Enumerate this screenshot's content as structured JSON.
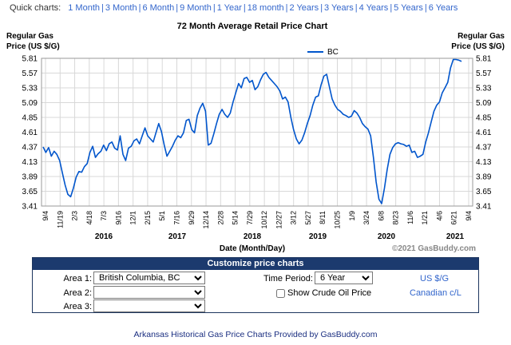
{
  "quick_charts": {
    "label": "Quick charts:",
    "links": [
      "1 Month",
      "3 Month",
      "6 Month",
      "9 Month",
      "1 Year",
      "18 month",
      "2 Years",
      "3 Years",
      "4 Years",
      "5 Years",
      "6 Years"
    ]
  },
  "chart_data": {
    "type": "line",
    "title": "72 Month Average Retail Price Chart",
    "ylabel_left": "Regular Gas\nPrice (US $/G)",
    "ylabel_right": "Regular Gas\nPrice (US $/G)",
    "xlabel": "Date (Month/Day)",
    "credit": "©2021 GasBuddy.com",
    "legend": "BC",
    "legend_position": "top-right",
    "grid": true,
    "ylim": [
      3.41,
      5.81
    ],
    "y_ticks": [
      "5.81",
      "5.57",
      "5.33",
      "5.09",
      "4.85",
      "4.61",
      "4.37",
      "4.13",
      "3.89",
      "3.65",
      "3.41"
    ],
    "x_ticks": [
      "9/4",
      "11/19",
      "2/3",
      "4/18",
      "7/3",
      "9/16",
      "12/1",
      "2/15",
      "5/1",
      "7/16",
      "9/29",
      "12/14",
      "2/28",
      "5/14",
      "7/29",
      "10/12",
      "12/27",
      "3/12",
      "5/27",
      "8/11",
      "10/25",
      "1/9",
      "3/24",
      "6/8",
      "8/23",
      "11/6",
      "1/21",
      "4/6",
      "6/21",
      "9/4"
    ],
    "years": [
      "2016",
      "2017",
      "2018",
      "2019",
      "2020",
      "2021"
    ],
    "series": [
      {
        "name": "BC",
        "color": "#0055cc",
        "values": [
          4.37,
          4.28,
          4.36,
          4.22,
          4.3,
          4.25,
          4.15,
          3.95,
          3.75,
          3.6,
          3.56,
          3.7,
          3.88,
          3.97,
          3.96,
          4.05,
          4.1,
          4.28,
          4.38,
          4.2,
          4.26,
          4.3,
          4.4,
          4.31,
          4.42,
          4.45,
          4.35,
          4.32,
          4.55,
          4.25,
          4.15,
          4.35,
          4.38,
          4.47,
          4.5,
          4.42,
          4.55,
          4.68,
          4.55,
          4.5,
          4.45,
          4.6,
          4.75,
          4.62,
          4.4,
          4.22,
          4.3,
          4.38,
          4.48,
          4.55,
          4.52,
          4.6,
          4.8,
          4.82,
          4.65,
          4.6,
          4.88,
          5.0,
          5.08,
          4.95,
          4.4,
          4.43,
          4.58,
          4.75,
          4.9,
          4.98,
          4.9,
          4.85,
          4.92,
          5.1,
          5.25,
          5.4,
          5.33,
          5.48,
          5.5,
          5.42,
          5.45,
          5.3,
          5.35,
          5.46,
          5.55,
          5.58,
          5.5,
          5.45,
          5.4,
          5.35,
          5.28,
          5.15,
          5.18,
          5.1,
          4.85,
          4.65,
          4.5,
          4.42,
          4.48,
          4.6,
          4.75,
          4.88,
          5.05,
          5.18,
          5.2,
          5.38,
          5.52,
          5.55,
          5.35,
          5.15,
          5.05,
          4.98,
          4.95,
          4.9,
          4.88,
          4.85,
          4.87,
          4.96,
          4.92,
          4.85,
          4.75,
          4.7,
          4.66,
          4.55,
          4.2,
          3.8,
          3.52,
          3.45,
          3.7,
          4.0,
          4.25,
          4.36,
          4.42,
          4.44,
          4.42,
          4.41,
          4.38,
          4.4,
          4.28,
          4.3,
          4.2,
          4.22,
          4.25,
          4.45,
          4.6,
          4.78,
          4.95,
          5.05,
          5.1,
          5.25,
          5.33,
          5.42,
          5.65,
          5.79,
          5.79,
          5.78,
          5.76
        ]
      }
    ]
  },
  "customize": {
    "title": "Customize price charts",
    "area1_label": "Area 1:",
    "area1_value": "British Columbia, BC",
    "area2_label": "Area 2:",
    "area2_value": "",
    "area3_label": "Area 3:",
    "area3_value": "",
    "time_period_label": "Time Period:",
    "time_period_value": "6 Year",
    "crude_label": "Show Crude Oil Price",
    "units_link": "US $/G",
    "currency_link": "Canadian c/L"
  },
  "footer": {
    "prefix": "Arkansas Historical Gas Price Charts",
    "middle": "Provided by",
    "brand": "GasBuddy.com"
  }
}
